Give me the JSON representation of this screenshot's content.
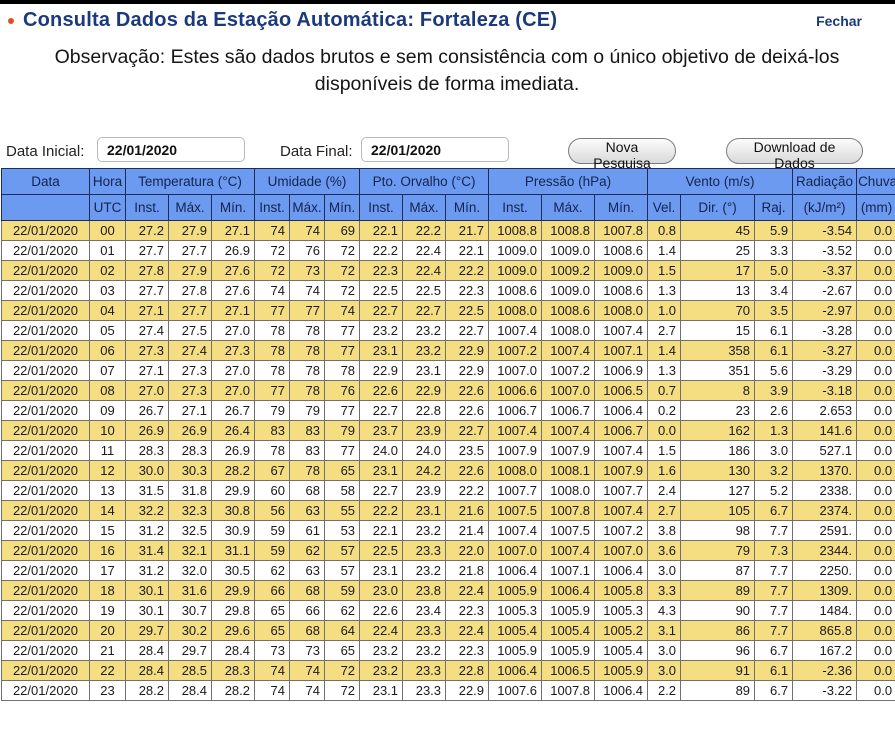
{
  "page": {
    "title": "Consulta Dados da Estação Automática: Fortaleza (CE)",
    "close_link": "Fechar",
    "observation": "Observação: Estes são dados brutos e sem consistência com o único objetivo de deixá-los disponíveis de forma imediata."
  },
  "form": {
    "start_label": "Data Inicial:",
    "start_value": "22/01/2020",
    "end_label": "Data Final:",
    "end_value": "22/01/2020",
    "new_search_button": "Nova Pesquisa",
    "download_button": "Download de Dados"
  },
  "colors": {
    "header_bg": "#6b9af0",
    "header_text": "#14244f",
    "row_yellow": "#f5de82",
    "row_white": "#ffffff",
    "title_color": "#1b3a7d",
    "bullet_orange": "#d9531e"
  },
  "table": {
    "group_headers": [
      {
        "label": "Data",
        "span": 1
      },
      {
        "label": "Hora",
        "span": 1
      },
      {
        "label": "Temperatura (°C)",
        "span": 3
      },
      {
        "label": "Umidade (%)",
        "span": 3
      },
      {
        "label": "Pto. Orvalho (°C)",
        "span": 3
      },
      {
        "label": "Pressão (hPa)",
        "span": 3
      },
      {
        "label": "Vento (m/s)",
        "span": 3
      },
      {
        "label": "Radiação",
        "span": 1
      },
      {
        "label": "Chuva",
        "span": 1
      }
    ],
    "sub_headers": [
      "",
      "UTC",
      "Inst.",
      "Máx.",
      "Mín.",
      "Inst.",
      "Máx.",
      "Mín.",
      "Inst.",
      "Máx.",
      "Mín.",
      "Inst.",
      "Máx.",
      "Mín.",
      "Vel.",
      "Dir. (°)",
      "Raj.",
      "(kJ/m²)",
      "(mm)"
    ],
    "rows": [
      [
        "22/01/2020",
        "00",
        "27.2",
        "27.9",
        "27.1",
        "74",
        "74",
        "69",
        "22.1",
        "22.2",
        "21.7",
        "1008.8",
        "1008.8",
        "1007.8",
        "0.8",
        "45",
        "5.9",
        "-3.54",
        "0.0"
      ],
      [
        "22/01/2020",
        "01",
        "27.7",
        "27.7",
        "26.9",
        "72",
        "76",
        "72",
        "22.2",
        "22.4",
        "22.1",
        "1009.0",
        "1009.0",
        "1008.6",
        "1.4",
        "25",
        "3.3",
        "-3.52",
        "0.0"
      ],
      [
        "22/01/2020",
        "02",
        "27.8",
        "27.9",
        "27.6",
        "72",
        "73",
        "72",
        "22.3",
        "22.4",
        "22.2",
        "1009.0",
        "1009.2",
        "1009.0",
        "1.5",
        "17",
        "5.0",
        "-3.37",
        "0.0"
      ],
      [
        "22/01/2020",
        "03",
        "27.7",
        "27.8",
        "27.6",
        "74",
        "74",
        "72",
        "22.5",
        "22.5",
        "22.3",
        "1008.6",
        "1009.0",
        "1008.6",
        "1.3",
        "13",
        "3.4",
        "-2.67",
        "0.0"
      ],
      [
        "22/01/2020",
        "04",
        "27.1",
        "27.7",
        "27.1",
        "77",
        "77",
        "74",
        "22.7",
        "22.7",
        "22.5",
        "1008.0",
        "1008.6",
        "1008.0",
        "1.0",
        "70",
        "3.5",
        "-2.97",
        "0.0"
      ],
      [
        "22/01/2020",
        "05",
        "27.4",
        "27.5",
        "27.0",
        "78",
        "78",
        "77",
        "23.2",
        "23.2",
        "22.7",
        "1007.4",
        "1008.0",
        "1007.4",
        "2.7",
        "15",
        "6.1",
        "-3.28",
        "0.0"
      ],
      [
        "22/01/2020",
        "06",
        "27.3",
        "27.4",
        "27.3",
        "78",
        "78",
        "77",
        "23.1",
        "23.2",
        "22.9",
        "1007.2",
        "1007.4",
        "1007.1",
        "1.4",
        "358",
        "6.1",
        "-3.27",
        "0.0"
      ],
      [
        "22/01/2020",
        "07",
        "27.1",
        "27.3",
        "27.0",
        "78",
        "78",
        "78",
        "22.9",
        "23.1",
        "22.9",
        "1007.0",
        "1007.2",
        "1006.9",
        "1.3",
        "351",
        "5.6",
        "-3.29",
        "0.0"
      ],
      [
        "22/01/2020",
        "08",
        "27.0",
        "27.3",
        "27.0",
        "77",
        "78",
        "76",
        "22.6",
        "22.9",
        "22.6",
        "1006.6",
        "1007.0",
        "1006.5",
        "0.7",
        "8",
        "3.9",
        "-3.18",
        "0.0"
      ],
      [
        "22/01/2020",
        "09",
        "26.7",
        "27.1",
        "26.7",
        "79",
        "79",
        "77",
        "22.7",
        "22.8",
        "22.6",
        "1006.7",
        "1006.7",
        "1006.4",
        "0.2",
        "23",
        "2.6",
        "2.653",
        "0.0"
      ],
      [
        "22/01/2020",
        "10",
        "26.9",
        "26.9",
        "26.4",
        "83",
        "83",
        "79",
        "23.7",
        "23.9",
        "22.7",
        "1007.4",
        "1007.4",
        "1006.7",
        "0.0",
        "162",
        "1.3",
        "141.6",
        "0.0"
      ],
      [
        "22/01/2020",
        "11",
        "28.3",
        "28.3",
        "26.9",
        "78",
        "83",
        "77",
        "24.0",
        "24.0",
        "23.5",
        "1007.9",
        "1007.9",
        "1007.4",
        "1.5",
        "186",
        "3.0",
        "527.1",
        "0.0"
      ],
      [
        "22/01/2020",
        "12",
        "30.0",
        "30.3",
        "28.2",
        "67",
        "78",
        "65",
        "23.1",
        "24.2",
        "22.6",
        "1008.0",
        "1008.1",
        "1007.9",
        "1.6",
        "130",
        "3.2",
        "1370.",
        "0.0"
      ],
      [
        "22/01/2020",
        "13",
        "31.5",
        "31.8",
        "29.9",
        "60",
        "68",
        "58",
        "22.7",
        "23.9",
        "22.2",
        "1007.7",
        "1008.0",
        "1007.7",
        "2.4",
        "127",
        "5.2",
        "2338.",
        "0.0"
      ],
      [
        "22/01/2020",
        "14",
        "32.2",
        "32.3",
        "30.8",
        "56",
        "63",
        "55",
        "22.2",
        "23.1",
        "21.6",
        "1007.5",
        "1007.8",
        "1007.4",
        "2.7",
        "105",
        "6.7",
        "2374.",
        "0.0"
      ],
      [
        "22/01/2020",
        "15",
        "31.2",
        "32.5",
        "30.9",
        "59",
        "61",
        "53",
        "22.1",
        "23.2",
        "21.4",
        "1007.4",
        "1007.5",
        "1007.2",
        "3.8",
        "98",
        "7.7",
        "2591.",
        "0.0"
      ],
      [
        "22/01/2020",
        "16",
        "31.4",
        "32.1",
        "31.1",
        "59",
        "62",
        "57",
        "22.5",
        "23.3",
        "22.0",
        "1007.0",
        "1007.4",
        "1007.0",
        "3.6",
        "79",
        "7.3",
        "2344.",
        "0.0"
      ],
      [
        "22/01/2020",
        "17",
        "31.2",
        "32.0",
        "30.5",
        "62",
        "63",
        "57",
        "23.1",
        "23.2",
        "21.8",
        "1006.4",
        "1007.1",
        "1006.4",
        "3.0",
        "87",
        "7.7",
        "2250.",
        "0.0"
      ],
      [
        "22/01/2020",
        "18",
        "30.1",
        "31.6",
        "29.9",
        "66",
        "68",
        "59",
        "23.0",
        "23.8",
        "22.4",
        "1005.9",
        "1006.4",
        "1005.8",
        "3.3",
        "89",
        "7.7",
        "1309.",
        "0.0"
      ],
      [
        "22/01/2020",
        "19",
        "30.1",
        "30.7",
        "29.8",
        "65",
        "66",
        "62",
        "22.6",
        "23.4",
        "22.3",
        "1005.3",
        "1005.9",
        "1005.3",
        "4.3",
        "90",
        "7.7",
        "1484.",
        "0.0"
      ],
      [
        "22/01/2020",
        "20",
        "29.7",
        "30.2",
        "29.6",
        "65",
        "68",
        "64",
        "22.4",
        "23.3",
        "22.4",
        "1005.4",
        "1005.4",
        "1005.2",
        "3.1",
        "86",
        "7.7",
        "865.8",
        "0.0"
      ],
      [
        "22/01/2020",
        "21",
        "28.4",
        "29.7",
        "28.4",
        "73",
        "73",
        "65",
        "23.2",
        "23.2",
        "22.3",
        "1005.9",
        "1005.9",
        "1005.4",
        "3.0",
        "96",
        "6.7",
        "167.2",
        "0.0"
      ],
      [
        "22/01/2020",
        "22",
        "28.4",
        "28.5",
        "28.3",
        "74",
        "74",
        "72",
        "23.2",
        "23.3",
        "22.8",
        "1006.4",
        "1006.5",
        "1005.9",
        "3.0",
        "91",
        "6.1",
        "-2.36",
        "0.0"
      ],
      [
        "22/01/2020",
        "23",
        "28.2",
        "28.4",
        "28.2",
        "74",
        "74",
        "72",
        "23.1",
        "23.3",
        "22.9",
        "1007.6",
        "1007.8",
        "1006.4",
        "2.2",
        "89",
        "6.7",
        "-3.22",
        "0.0"
      ]
    ]
  }
}
